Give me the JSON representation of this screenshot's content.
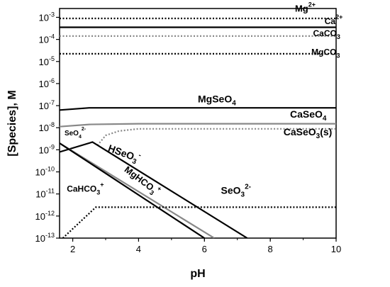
{
  "chart_data": {
    "type": "line",
    "xlabel": "pH",
    "ylabel": "[Species], M",
    "xlim": [
      1.6,
      10
    ],
    "ylim": [
      -13,
      -2.6
    ],
    "yscale": "log",
    "grid": false,
    "x_ticks": [
      {
        "value": 2,
        "label": "2"
      },
      {
        "value": 4,
        "label": "4"
      },
      {
        "value": 6,
        "label": "6"
      },
      {
        "value": 8,
        "label": "8"
      },
      {
        "value": 10,
        "label": "10"
      }
    ],
    "y_ticks": [
      {
        "exp": -3,
        "base": "10",
        "sup": "-3"
      },
      {
        "exp": -4,
        "base": "10",
        "sup": "-4"
      },
      {
        "exp": -5,
        "base": "10",
        "sup": "-5"
      },
      {
        "exp": -6,
        "base": "10",
        "sup": "-6"
      },
      {
        "exp": -7,
        "base": "10",
        "sup": "-7"
      },
      {
        "exp": -8,
        "base": "10",
        "sup": "-8"
      },
      {
        "exp": -9,
        "base": "10",
        "sup": "-9"
      },
      {
        "exp": -10,
        "base": "10",
        "sup": "-10"
      },
      {
        "exp": -11,
        "base": "10",
        "sup": "-11"
      },
      {
        "exp": -12,
        "base": "10",
        "sup": "-12"
      },
      {
        "exp": -13,
        "base": "10",
        "sup": "-13"
      }
    ],
    "series": [
      {
        "key": "mg",
        "color": "#000000",
        "dash": "dotted",
        "width": 2.2,
        "points": [
          [
            1.6,
            -3.05
          ],
          [
            10,
            -3.05
          ]
        ]
      },
      {
        "key": "ca",
        "color": "#000000",
        "dash": "solid",
        "width": 2.2,
        "points": [
          [
            1.6,
            -3.45
          ],
          [
            10,
            -3.45
          ]
        ]
      },
      {
        "key": "caco3",
        "color": "#888888",
        "dash": "dotted",
        "width": 2.2,
        "points": [
          [
            1.6,
            -3.85
          ],
          [
            10,
            -3.85
          ]
        ]
      },
      {
        "key": "mgco3",
        "color": "#000000",
        "dash": "dotted",
        "width": 2.2,
        "points": [
          [
            1.6,
            -4.65
          ],
          [
            10,
            -4.65
          ]
        ]
      },
      {
        "key": "mgseo4",
        "color": "#000000",
        "dash": "solid",
        "width": 2.2,
        "points": [
          [
            1.6,
            -7.2
          ],
          [
            2.5,
            -7.1
          ],
          [
            4,
            -7.1
          ],
          [
            10,
            -7.1
          ]
        ]
      },
      {
        "key": "caseo4",
        "color": "#888888",
        "dash": "solid",
        "width": 2.2,
        "points": [
          [
            1.6,
            -7.95
          ],
          [
            2.5,
            -7.85
          ],
          [
            4,
            -7.82
          ],
          [
            10,
            -7.82
          ]
        ]
      },
      {
        "key": "caseo3s",
        "color": "#888888",
        "dash": "dotted",
        "width": 2.2,
        "points": [
          [
            2.75,
            -8.8
          ],
          [
            3.0,
            -8.35
          ],
          [
            3.4,
            -8.15
          ],
          [
            4,
            -8.05
          ],
          [
            10,
            -8.05
          ]
        ]
      },
      {
        "key": "hseo3",
        "color": "#000000",
        "dash": "solid",
        "width": 2.2,
        "points": [
          [
            1.6,
            -9.1
          ],
          [
            2.6,
            -8.65
          ],
          [
            7.3,
            -13
          ]
        ]
      },
      {
        "key": "mghco3",
        "color": "#888888",
        "dash": "solid",
        "width": 2.2,
        "points": [
          [
            1.6,
            -8.7
          ],
          [
            6.3,
            -13
          ]
        ]
      },
      {
        "key": "cahco3",
        "color": "#000000",
        "dash": "solid",
        "width": 2.2,
        "points": [
          [
            1.6,
            -8.7
          ],
          [
            6.0,
            -13
          ]
        ]
      },
      {
        "key": "seo3",
        "color": "#000000",
        "dash": "dotted",
        "width": 2.2,
        "points": [
          [
            1.7,
            -13
          ],
          [
            2.7,
            -11.6
          ],
          [
            10,
            -11.6
          ]
        ]
      }
    ],
    "annotations": [
      {
        "key": "mg",
        "base": "Mg",
        "sup": "2+",
        "x": 8.75,
        "y": -2.75,
        "size": 13
      },
      {
        "key": "ca",
        "base": "Ca",
        "sup": "2+",
        "x": 9.65,
        "y": -3.3,
        "size": 12
      },
      {
        "key": "caco3",
        "base": "CaCO",
        "sub": "3",
        "x": 9.3,
        "y": -3.85,
        "size": 12
      },
      {
        "key": "mgco3",
        "base": "MgCO",
        "sub": "3",
        "x": 9.25,
        "y": -4.7,
        "size": 12
      },
      {
        "key": "mgseo4",
        "base": "MgSeO",
        "sub": "4",
        "x": 5.8,
        "y": -6.85,
        "size": 14
      },
      {
        "key": "caseo4",
        "base": "CaSeO",
        "sub": "4",
        "x": 8.6,
        "y": -7.55,
        "size": 14
      },
      {
        "key": "caseo3s",
        "base": "CaSeO",
        "sub": "3",
        "tail": "(s)",
        "x": 8.4,
        "y": -8.35,
        "size": 14
      },
      {
        "key": "seo4",
        "base": "SeO",
        "sub": "4",
        "sup": "2-",
        "x": 1.75,
        "y": -8.35,
        "size": 10
      },
      {
        "key": "hseo3",
        "base": "HSeO",
        "sub": "3",
        "sup": "-",
        "x": 3.05,
        "y": -9.05,
        "size": 14,
        "rotate": 20
      },
      {
        "key": "mghco3",
        "base": "MgHCO",
        "sub": "3",
        "sup": "+",
        "x": 3.55,
        "y": -9.95,
        "size": 13,
        "rotate": 37
      },
      {
        "key": "cahco3",
        "base": "CaHCO",
        "sub": "3",
        "sup": "+",
        "x": 1.82,
        "y": -10.9,
        "size": 12
      },
      {
        "key": "seo3",
        "base": "SeO",
        "sub": "3",
        "sup": "2-",
        "x": 6.5,
        "y": -11.0,
        "size": 14
      }
    ]
  }
}
